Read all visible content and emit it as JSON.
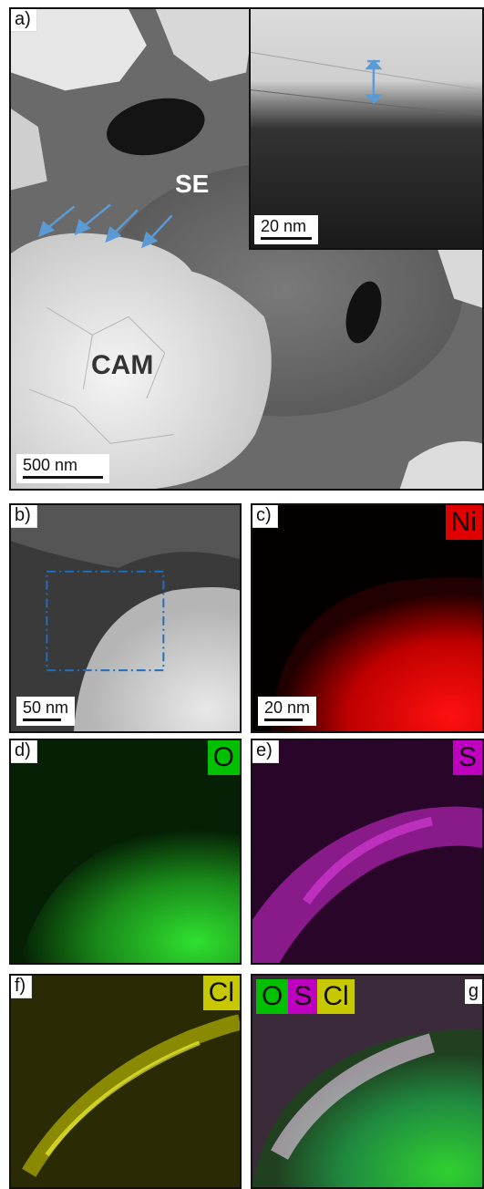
{
  "panels": {
    "a": {
      "label": "a)",
      "scale": "500 nm",
      "se": "SE",
      "cam": "CAM",
      "inset": {
        "scale": "20 nm"
      }
    },
    "b": {
      "label": "b)",
      "scale": "50 nm"
    },
    "c": {
      "label": "c)",
      "scale": "20 nm",
      "element": "Ni",
      "color": "#e00000"
    },
    "d": {
      "label": "d)",
      "element": "O",
      "color": "#00c000"
    },
    "e": {
      "label": "e)",
      "element": "S",
      "color": "#c000c0"
    },
    "f": {
      "label": "f)",
      "element": "Cl",
      "color": "#c8c800"
    },
    "g": {
      "label": "g",
      "elements": [
        "O",
        "S",
        "Cl"
      ]
    }
  },
  "colors": {
    "arrow": "#5b9bd5",
    "roi_box": "#1f6fc0"
  }
}
